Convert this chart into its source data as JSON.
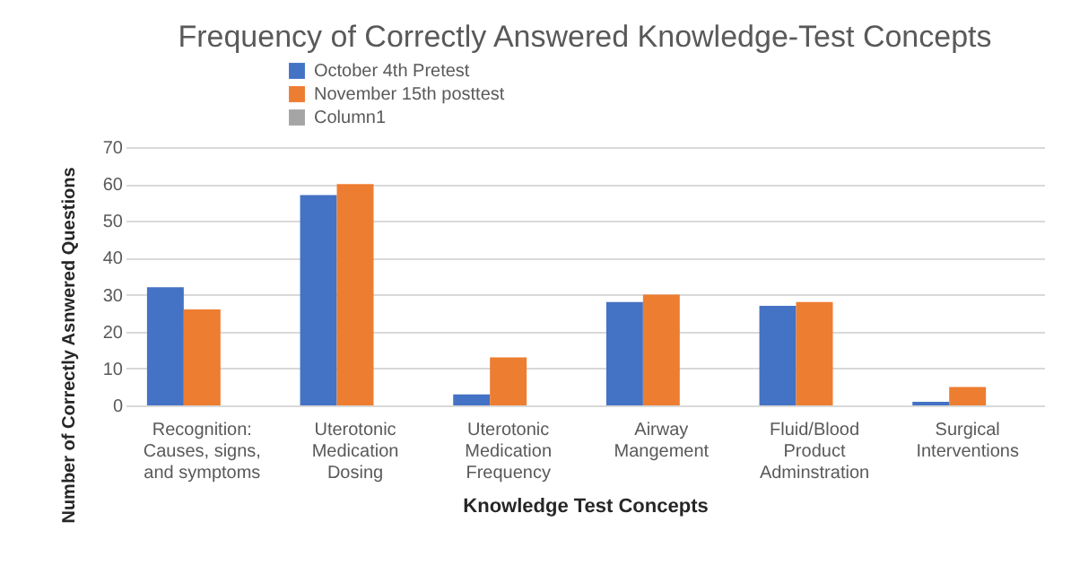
{
  "chart_data": {
    "type": "bar",
    "title": "Frequency of Correctly Answered Knowledge-Test Concepts",
    "xlabel": "Knowledge Test Concepts",
    "ylabel": "Number of  Correctly Asnwered Questions",
    "categories": [
      "Recognition: Causes, signs, and symptoms",
      "Uterotonic Medication Dosing",
      "Uterotonic Medication Frequency",
      "Airway Mangement",
      "Fluid/Blood Product Adminstration",
      "Surgical Interventions"
    ],
    "series": [
      {
        "name": "October 4th Pretest",
        "color": "#4472c4",
        "values": [
          32,
          57,
          3,
          28,
          27,
          1
        ]
      },
      {
        "name": "November 15th posttest",
        "color": "#ed7d31",
        "values": [
          26,
          60,
          13,
          30,
          28,
          5
        ]
      },
      {
        "name": "Column1",
        "color": "#a5a5a5",
        "values": [
          null,
          null,
          null,
          null,
          null,
          null
        ]
      }
    ],
    "ylim": [
      0,
      70
    ],
    "yticks": [
      0,
      10,
      20,
      30,
      40,
      50,
      60,
      70
    ],
    "grid": "y",
    "legend": "top left"
  }
}
